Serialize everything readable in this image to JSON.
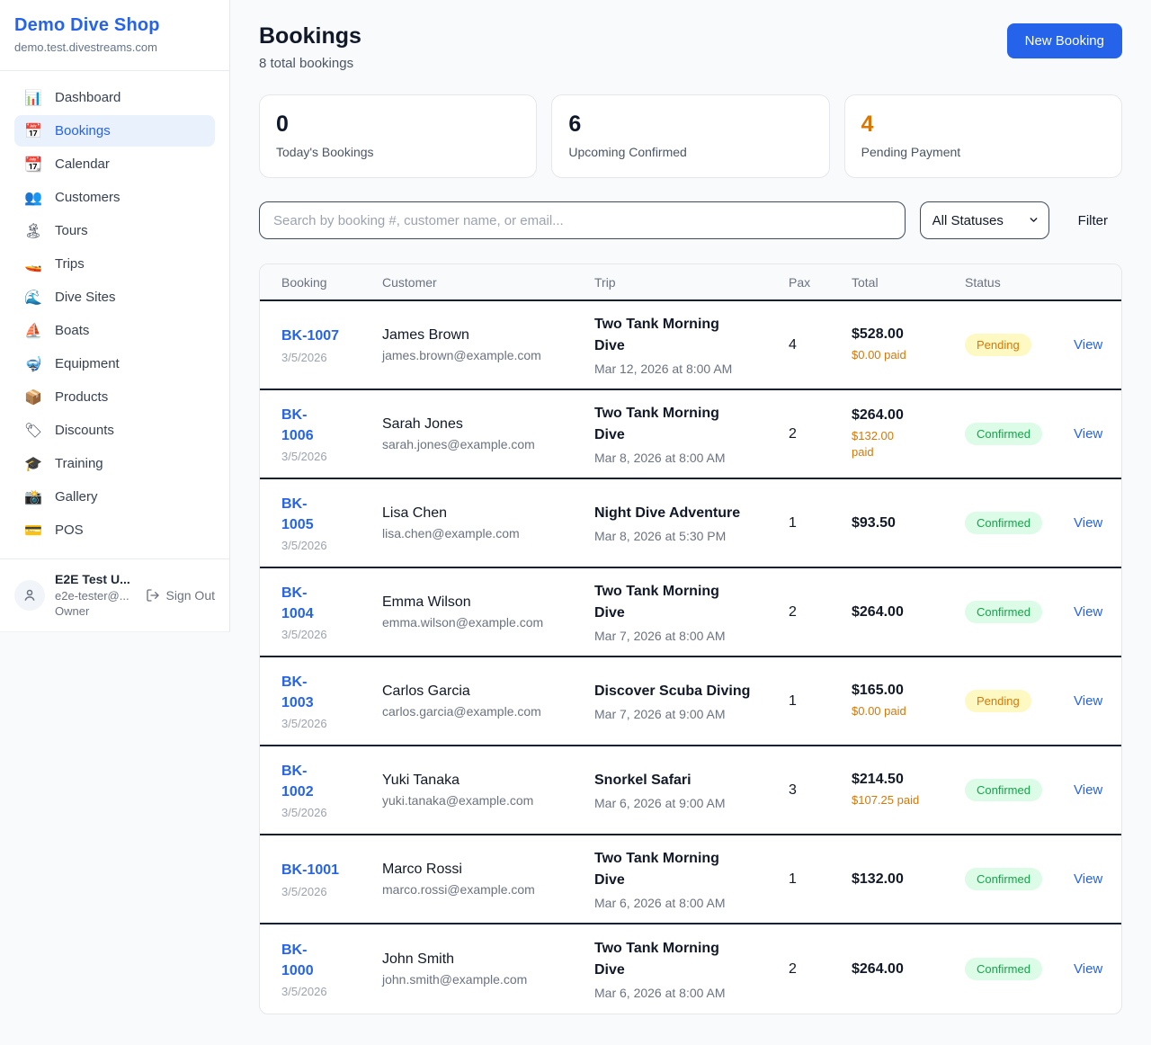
{
  "brand": {
    "name": "Demo Dive Shop",
    "domain": "demo.test.divestreams.com"
  },
  "sidebar": {
    "items": [
      {
        "icon": "📊",
        "icon_name": "bar-chart-icon",
        "label": "Dashboard",
        "active": false
      },
      {
        "icon": "📅",
        "icon_name": "calendar-icon",
        "label": "Bookings",
        "active": true
      },
      {
        "icon": "📆",
        "icon_name": "tear-off-calendar-icon",
        "label": "Calendar",
        "active": false
      },
      {
        "icon": "👥",
        "icon_name": "people-icon",
        "label": "Customers",
        "active": false
      },
      {
        "icon": "🏝",
        "icon_name": "island-icon",
        "label": "Tours",
        "active": false
      },
      {
        "icon": "🚤",
        "icon_name": "speedboat-icon",
        "label": "Trips",
        "active": false
      },
      {
        "icon": "🌊",
        "icon_name": "wave-icon",
        "label": "Dive Sites",
        "active": false
      },
      {
        "icon": "⛵",
        "icon_name": "sailboat-icon",
        "label": "Boats",
        "active": false
      },
      {
        "icon": "🤿",
        "icon_name": "diving-mask-icon",
        "label": "Equipment",
        "active": false
      },
      {
        "icon": "📦",
        "icon_name": "package-icon",
        "label": "Products",
        "active": false
      },
      {
        "icon": "🏷",
        "icon_name": "tag-icon",
        "label": "Discounts",
        "active": false
      },
      {
        "icon": "🎓",
        "icon_name": "graduation-cap-icon",
        "label": "Training",
        "active": false
      },
      {
        "icon": "📸",
        "icon_name": "camera-icon",
        "label": "Gallery",
        "active": false
      },
      {
        "icon": "💳",
        "icon_name": "credit-card-icon",
        "label": "POS",
        "active": false
      }
    ]
  },
  "user": {
    "name": "E2E Test U...",
    "email": "e2e-tester@...",
    "role": "Owner",
    "sign_out_label": "Sign Out"
  },
  "header": {
    "title": "Bookings",
    "subtitle": "8 total bookings",
    "new_booking_label": "New Booking"
  },
  "stats": [
    {
      "value": "0",
      "label": "Today's Bookings",
      "accent": false
    },
    {
      "value": "6",
      "label": "Upcoming Confirmed",
      "accent": false
    },
    {
      "value": "4",
      "label": "Pending Payment",
      "accent": true
    }
  ],
  "filters": {
    "search_placeholder": "Search by booking #, customer name, or email...",
    "status_selected": "All Statuses",
    "filter_label": "Filter"
  },
  "table": {
    "headers": [
      "Booking",
      "Customer",
      "Trip",
      "Pax",
      "Total",
      "Status"
    ],
    "view_label": "View",
    "rows": [
      {
        "id": "BK-1007",
        "id_wrap": false,
        "date": "3/5/2026",
        "customer": "James Brown",
        "email": "james.brown@example.com",
        "trip": "Two Tank Morning Dive",
        "trip_when": "Mar 12, 2026 at 8:00 AM",
        "pax": "4",
        "total": "$528.00",
        "paid": "$0.00 paid",
        "paid_wrap": false,
        "status": "Pending"
      },
      {
        "id": "BK-1006",
        "id_wrap": true,
        "date": "3/5/2026",
        "customer": "Sarah Jones",
        "email": "sarah.jones@example.com",
        "trip": "Two Tank Morning Dive",
        "trip_when": "Mar 8, 2026 at 8:00 AM",
        "pax": "2",
        "total": "$264.00",
        "paid": "$132.00 paid",
        "paid_wrap": true,
        "status": "Confirmed"
      },
      {
        "id": "BK-1005",
        "id_wrap": true,
        "date": "3/5/2026",
        "customer": "Lisa Chen",
        "email": "lisa.chen@example.com",
        "trip": "Night Dive Adventure",
        "trip_when": "Mar 8, 2026 at 5:30 PM",
        "pax": "1",
        "total": "$93.50",
        "paid": "",
        "paid_wrap": false,
        "status": "Confirmed"
      },
      {
        "id": "BK-1004",
        "id_wrap": true,
        "date": "3/5/2026",
        "customer": "Emma Wilson",
        "email": "emma.wilson@example.com",
        "trip": "Two Tank Morning Dive",
        "trip_when": "Mar 7, 2026 at 8:00 AM",
        "pax": "2",
        "total": "$264.00",
        "paid": "",
        "paid_wrap": false,
        "status": "Confirmed"
      },
      {
        "id": "BK-1003",
        "id_wrap": true,
        "date": "3/5/2026",
        "customer": "Carlos Garcia",
        "email": "carlos.garcia@example.com",
        "trip": "Discover Scuba Diving",
        "trip_when": "Mar 7, 2026 at 9:00 AM",
        "pax": "1",
        "total": "$165.00",
        "paid": "$0.00 paid",
        "paid_wrap": false,
        "status": "Pending"
      },
      {
        "id": "BK-1002",
        "id_wrap": true,
        "date": "3/5/2026",
        "customer": "Yuki Tanaka",
        "email": "yuki.tanaka@example.com",
        "trip": "Snorkel Safari",
        "trip_when": "Mar 6, 2026 at 9:00 AM",
        "pax": "3",
        "total": "$214.50",
        "paid": "$107.25 paid",
        "paid_wrap": false,
        "status": "Confirmed"
      },
      {
        "id": "BK-1001",
        "id_wrap": false,
        "date": "3/5/2026",
        "customer": "Marco Rossi",
        "email": "marco.rossi@example.com",
        "trip": "Two Tank Morning Dive",
        "trip_when": "Mar 6, 2026 at 8:00 AM",
        "pax": "1",
        "total": "$132.00",
        "paid": "",
        "paid_wrap": false,
        "status": "Confirmed"
      },
      {
        "id": "BK-1000",
        "id_wrap": true,
        "date": "3/5/2026",
        "customer": "John Smith",
        "email": "john.smith@example.com",
        "trip": "Two Tank Morning Dive",
        "trip_when": "Mar 6, 2026 at 8:00 AM",
        "pax": "2",
        "total": "$264.00",
        "paid": "",
        "paid_wrap": false,
        "status": "Confirmed"
      }
    ]
  },
  "colors": {
    "brand_blue": "#2563eb",
    "pending_text": "#d97706",
    "pending_bg": "#fef9c3",
    "confirmed_text": "#16a34a",
    "confirmed_bg": "#dcfce7",
    "page_bg": "#f8fafc"
  }
}
